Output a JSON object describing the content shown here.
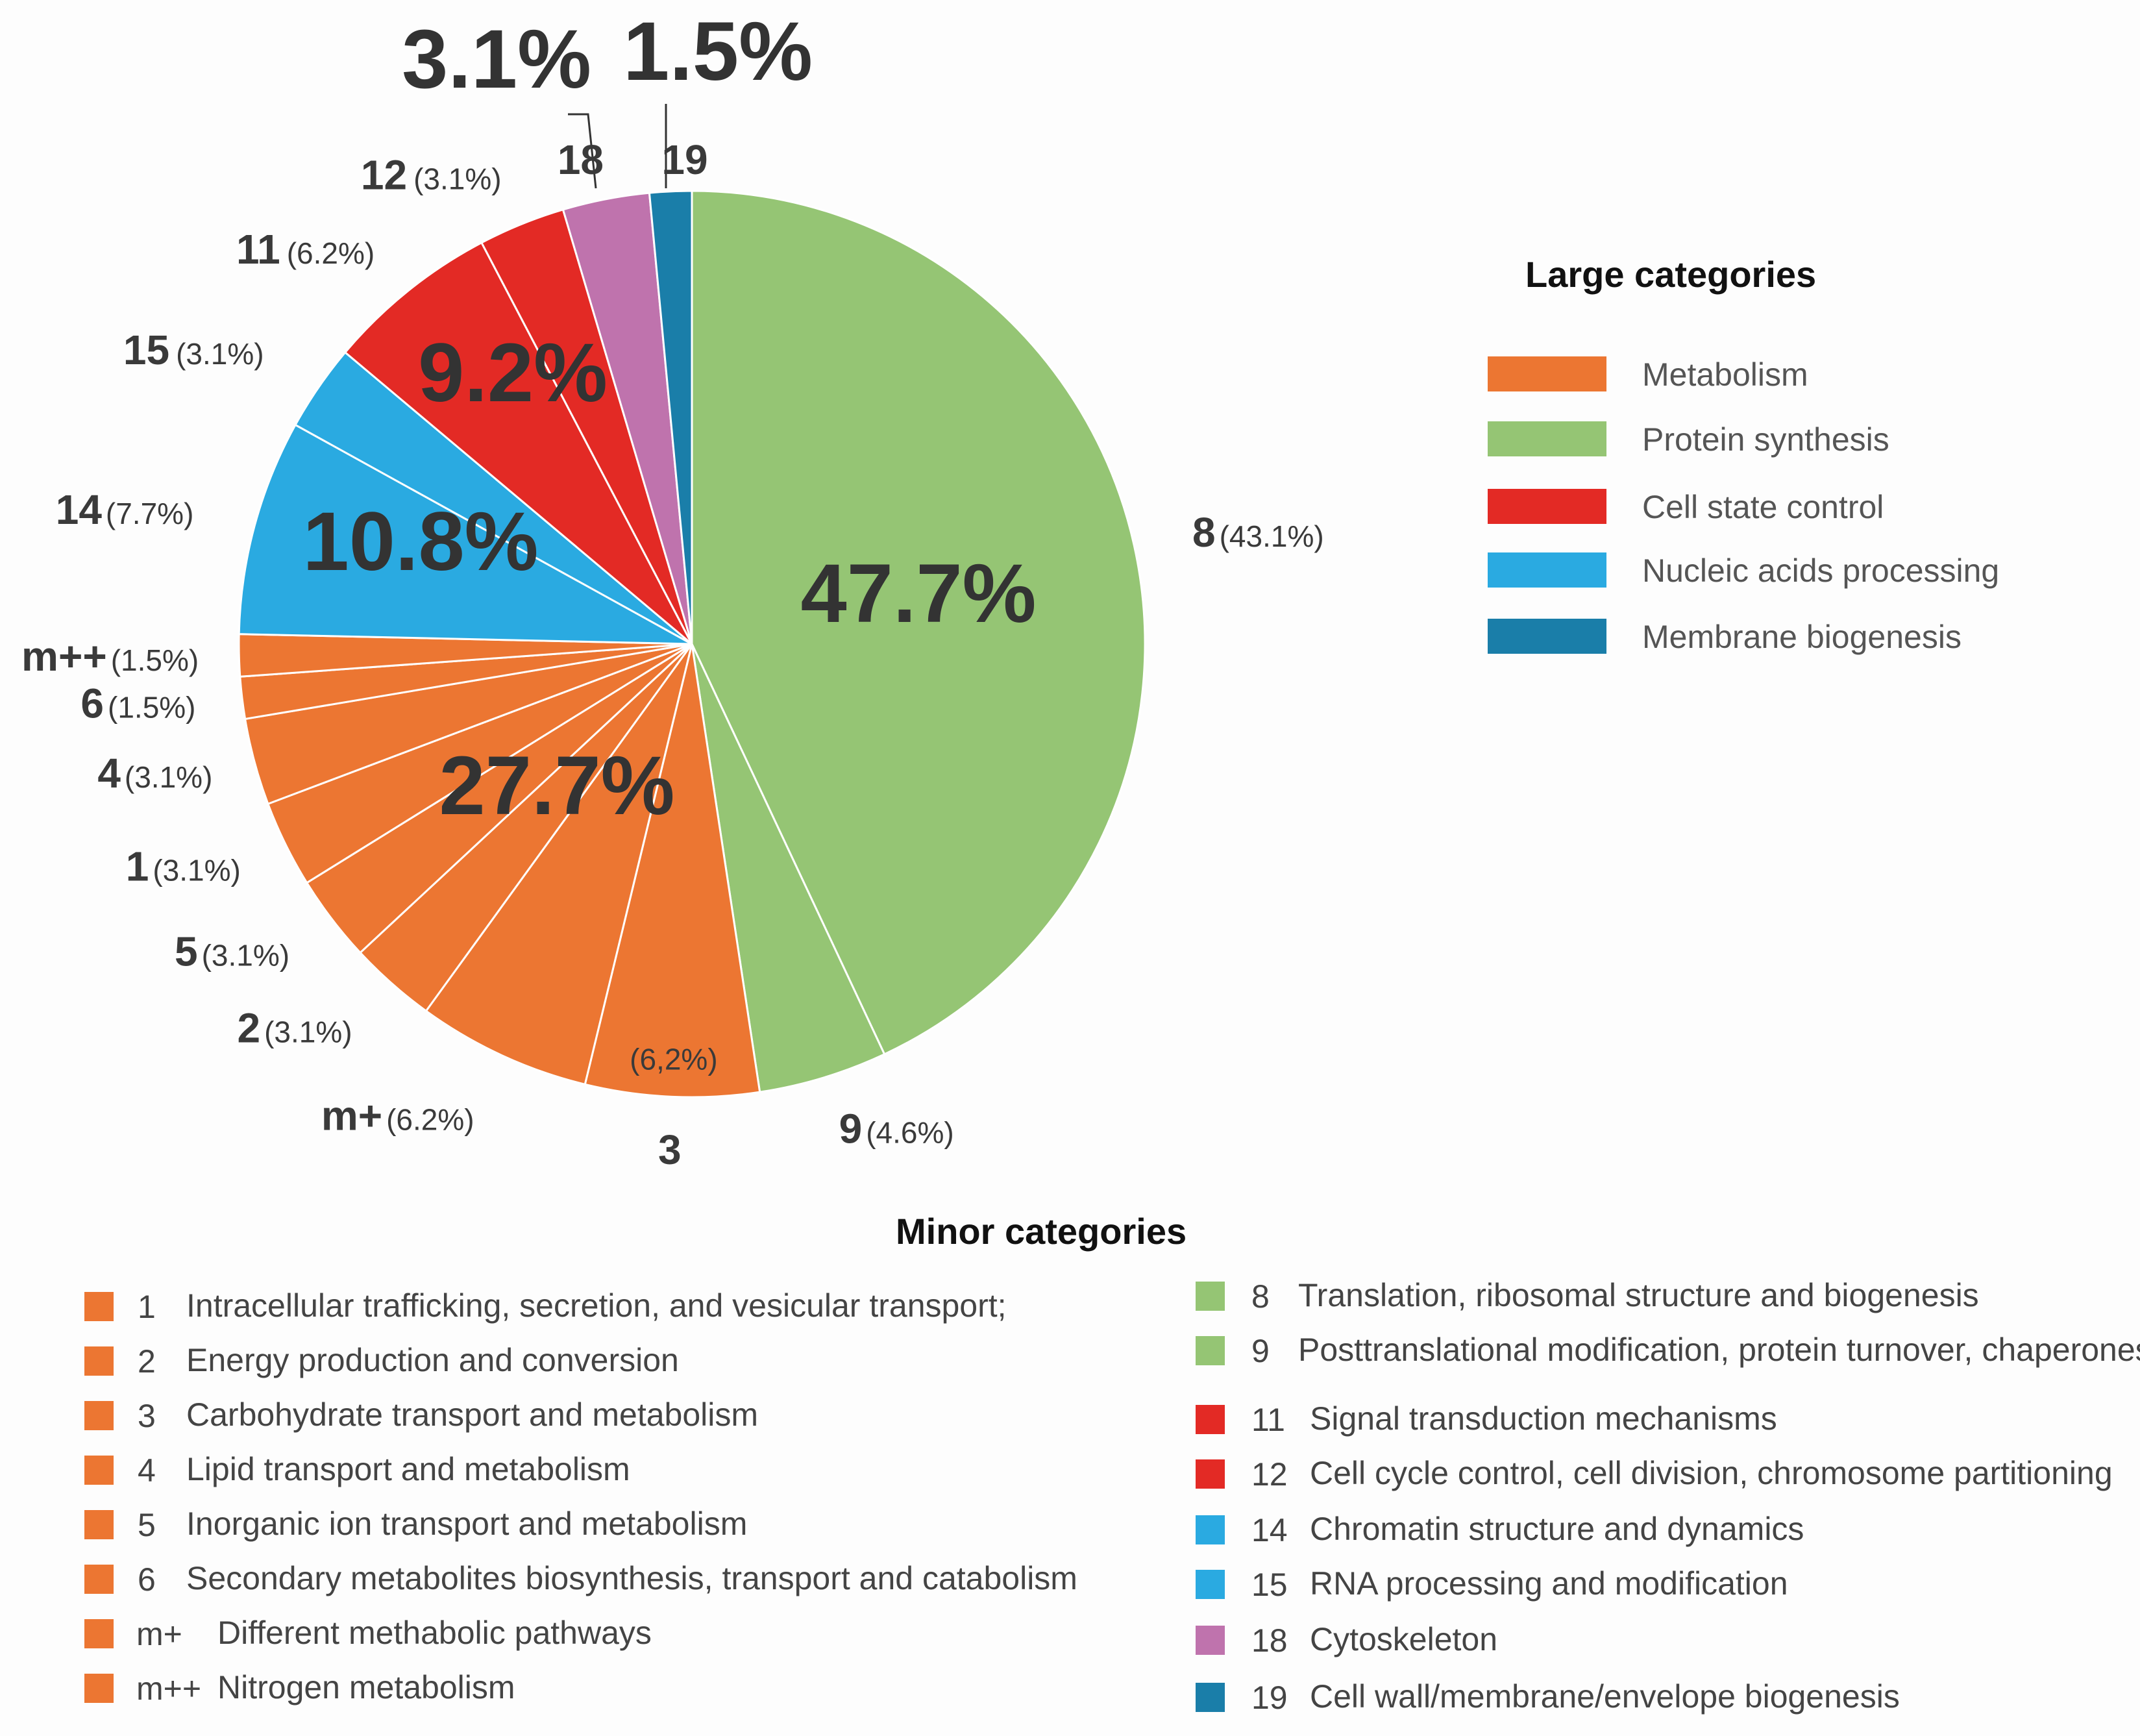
{
  "chart_data": {
    "type": "pie",
    "slices": [
      {
        "id": "8",
        "name": "Translation, ribosomal structure and biogenesis",
        "value": 43.1,
        "label": "(43.1%)",
        "group": "Protein synthesis"
      },
      {
        "id": "9",
        "name": "Posttranslational modification, protein turnover, chaperones",
        "value": 4.6,
        "label": "(4.6%)",
        "group": "Protein synthesis"
      },
      {
        "id": "3",
        "name": "Carbohydrate transport and metabolism",
        "value": 6.2,
        "label": "(6,2%)",
        "group": "Metabolism"
      },
      {
        "id": "m+",
        "name": "Different methabolic pathways",
        "value": 6.2,
        "label": "(6.2%)",
        "group": "Metabolism"
      },
      {
        "id": "2",
        "name": "Energy production and conversion",
        "value": 3.1,
        "label": "(3.1%)",
        "group": "Metabolism"
      },
      {
        "id": "5",
        "name": "Inorganic ion transport and metabolism",
        "value": 3.1,
        "label": "(3.1%)",
        "group": "Metabolism"
      },
      {
        "id": "1",
        "name": "Intracellular trafficking, secretion, and vesicular transport;",
        "value": 3.1,
        "label": "(3.1%)",
        "group": "Metabolism"
      },
      {
        "id": "4",
        "name": "Lipid transport and metabolism",
        "value": 3.1,
        "label": "(3.1%)",
        "group": "Metabolism"
      },
      {
        "id": "6",
        "name": "Secondary metabolites biosynthesis, transport and catabolism",
        "value": 1.5,
        "label": "(1.5%)",
        "group": "Metabolism"
      },
      {
        "id": "m++",
        "name": "Nitrogen metabolism",
        "value": 1.5,
        "label": "(1.5%)",
        "group": "Metabolism"
      },
      {
        "id": "14",
        "name": "Chromatin structure and dynamics",
        "value": 7.7,
        "label": "(7.7%)",
        "group": "Nucleic acids processing"
      },
      {
        "id": "15",
        "name": "RNA processing and modification",
        "value": 3.1,
        "label": "(3.1%)",
        "group": "Nucleic acids processing"
      },
      {
        "id": "11",
        "name": "Signal transduction mechanisms",
        "value": 6.2,
        "label": "(6.2%)",
        "group": "Cell state control"
      },
      {
        "id": "12",
        "name": "Cell cycle control, cell division, chromosome partitioning",
        "value": 3.1,
        "label": "(3.1%)",
        "group": "Cell state control"
      },
      {
        "id": "18",
        "name": "Cytoskeleton",
        "value": 3.1,
        "label": "",
        "group": "Cytoskeleton"
      },
      {
        "id": "19",
        "name": "Cell wall/membrane/envelope biogenesis",
        "value": 1.5,
        "label": "",
        "group": "Membrane biogenesis"
      }
    ],
    "group_totals": [
      {
        "group": "Protein synthesis",
        "label": "47.7%"
      },
      {
        "group": "Metabolism",
        "label": "27.7%"
      },
      {
        "group": "Nucleic acids processing",
        "label": "10.8%"
      },
      {
        "group": "Cell state control",
        "label": "9.2%"
      },
      {
        "group": "Cytoskeleton",
        "label": "3.1%"
      },
      {
        "group": "Membrane biogenesis",
        "label": "1.5%"
      }
    ],
    "colors": {
      "Metabolism": "#ec7632",
      "Protein synthesis": "#95c574",
      "Cell state control": "#e32a25",
      "Nucleic acids processing": "#2aaae1",
      "Membrane biogenesis": "#1a7ea9",
      "Cytoskeleton": "#bf73ad"
    }
  },
  "legend_large": {
    "title": "Large categories",
    "items": [
      {
        "label": "Metabolism",
        "color": "#ec7632"
      },
      {
        "label": "Protein synthesis",
        "color": "#95c574"
      },
      {
        "label": "Cell state control",
        "color": "#e32a25"
      },
      {
        "label": "Nucleic acids processing",
        "color": "#2aaae1"
      },
      {
        "label": "Membrane biogenesis",
        "color": "#1a7ea9"
      }
    ]
  },
  "legend_minor": {
    "title": "Minor categories",
    "left": [
      {
        "key": "1",
        "label": "Intracellular trafficking, secretion, and vesicular transport;",
        "color": "#ec7632"
      },
      {
        "key": "2",
        "label": "Energy production and conversion",
        "color": "#ec7632"
      },
      {
        "key": "3",
        "label": "Carbohydrate transport and metabolism",
        "color": "#ec7632"
      },
      {
        "key": "4",
        "label": "Lipid transport and metabolism",
        "color": "#ec7632"
      },
      {
        "key": "5",
        "label": "Inorganic ion transport and metabolism",
        "color": "#ec7632"
      },
      {
        "key": "6",
        "label": "Secondary metabolites biosynthesis, transport and catabolism",
        "color": "#ec7632"
      },
      {
        "key": "m+",
        "label": "Different methabolic pathways",
        "color": "#ec7632"
      },
      {
        "key": "m++",
        "label": "Nitrogen metabolism",
        "color": "#ec7632"
      }
    ],
    "right": [
      {
        "key": "8",
        "label": "Translation, ribosomal structure and biogenesis",
        "color": "#95c574"
      },
      {
        "key": "9",
        "label": "Posttranslational modification, protein turnover, chaperones",
        "color": "#95c574"
      },
      {
        "key": "11",
        "label": "Signal transduction mechanisms",
        "color": "#e32a25"
      },
      {
        "key": "12",
        "label": "Cell cycle control, cell division, chromosome partitioning",
        "color": "#e32a25"
      },
      {
        "key": "14",
        "label": "Chromatin structure and dynamics",
        "color": "#2aaae1"
      },
      {
        "key": "15",
        "label": "RNA processing and modification",
        "color": "#2aaae1"
      },
      {
        "key": "18",
        "label": "Cytoskeleton",
        "color": "#bf73ad"
      },
      {
        "key": "19",
        "label": "Cell wall/membrane/envelope biogenesis",
        "color": "#1a7ea9"
      }
    ]
  }
}
